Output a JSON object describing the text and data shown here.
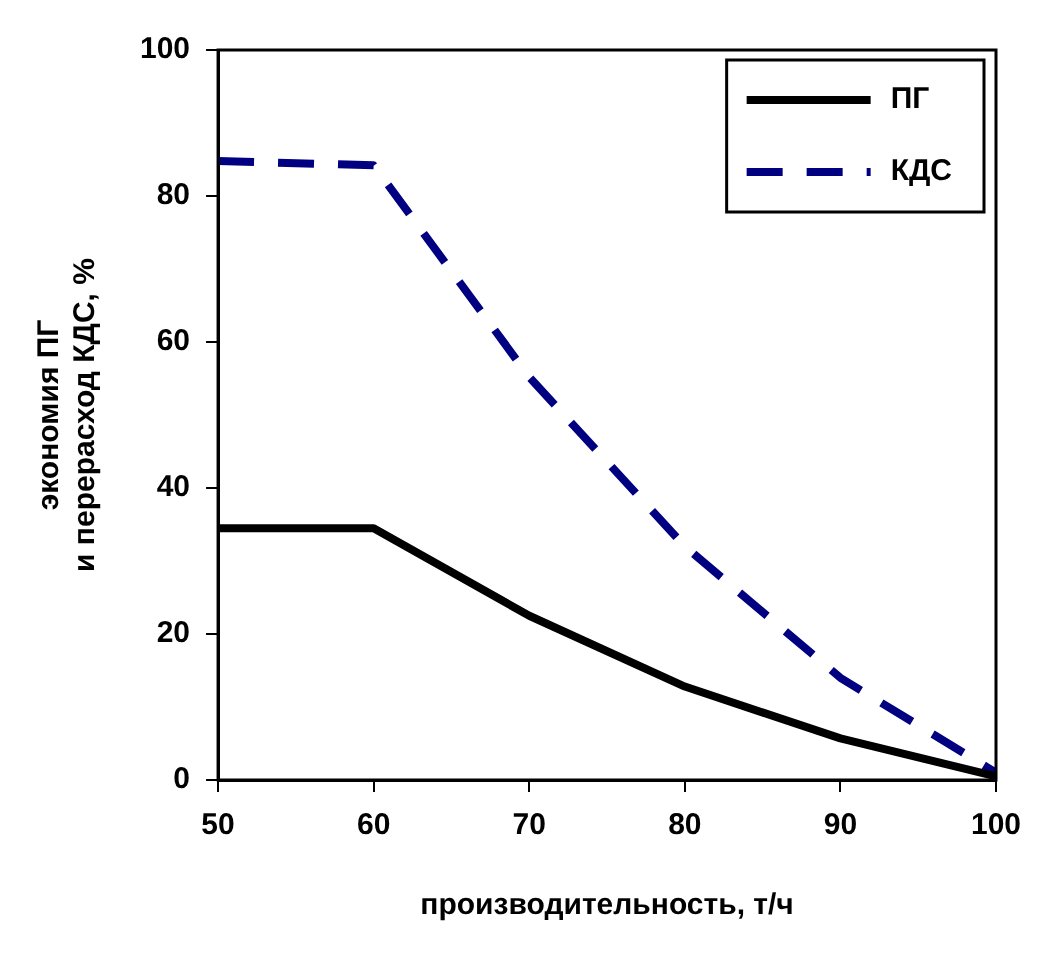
{
  "chart_data": {
    "type": "line",
    "xlabel": "производительность, т/ч",
    "ylabel": "экономия ПГ\nи перерасход КДС, %",
    "x": [
      50,
      60,
      70,
      80,
      90,
      100
    ],
    "series": [
      {
        "name": "ПГ",
        "color": "#000000",
        "line_style": "solid",
        "values": [
          34.5,
          34.5,
          22.5,
          12.8,
          5.7,
          0.5
        ]
      },
      {
        "name": "КДС",
        "color": "#000080",
        "line_style": "dashed",
        "values": [
          84.8,
          84.2,
          55.2,
          32,
          14,
          1
        ]
      }
    ],
    "xlim": [
      50,
      100
    ],
    "xticks": [
      50,
      60,
      70,
      80,
      90,
      100
    ],
    "ylim": [
      0,
      100
    ],
    "yticks": [
      0,
      20,
      40,
      60,
      80,
      100
    ],
    "grid": false,
    "legend": "top right",
    "marker": "none"
  }
}
